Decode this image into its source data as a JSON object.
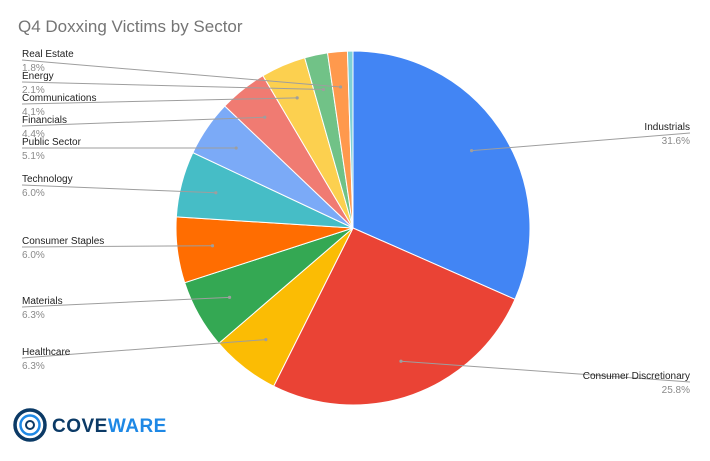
{
  "chart_data": {
    "type": "pie",
    "title": "Q4 Doxxing Victims by Sector",
    "slices": [
      {
        "label": "Industrials",
        "value": 31.6,
        "pct": "31.6%",
        "color": "#4285f4"
      },
      {
        "label": "Consumer Discretionary",
        "value": 25.8,
        "pct": "25.8%",
        "color": "#ea4335"
      },
      {
        "label": "Healthcare",
        "value": 6.3,
        "pct": "6.3%",
        "color": "#fbbc04"
      },
      {
        "label": "Materials",
        "value": 6.3,
        "pct": "6.3%",
        "color": "#34a853"
      },
      {
        "label": "Consumer Staples",
        "value": 6.0,
        "pct": "6.0%",
        "color": "#ff6d01"
      },
      {
        "label": "Technology",
        "value": 6.0,
        "pct": "6.0%",
        "color": "#46bdc6"
      },
      {
        "label": "Public Sector",
        "value": 5.1,
        "pct": "5.1%",
        "color": "#7baaf7"
      },
      {
        "label": "Financials",
        "value": 4.4,
        "pct": "4.4%",
        "color": "#f07b72"
      },
      {
        "label": "Communications",
        "value": 4.1,
        "pct": "4.1%",
        "color": "#fcd04f"
      },
      {
        "label": "Energy",
        "value": 2.1,
        "pct": "2.1%",
        "color": "#71c287"
      },
      {
        "label": "Real Estate",
        "value": 1.8,
        "pct": "1.8%",
        "color": "#ff994d"
      },
      {
        "label": "",
        "value": 0.5,
        "pct": "",
        "color": "#7ed1d7"
      }
    ],
    "legend": "none"
  },
  "logo": {
    "text_main": "COVE",
    "text_accent": "WARE",
    "icon": "circle-logo-icon",
    "colors": {
      "dark": "#0b3a66",
      "accent": "#1e88e5"
    }
  }
}
